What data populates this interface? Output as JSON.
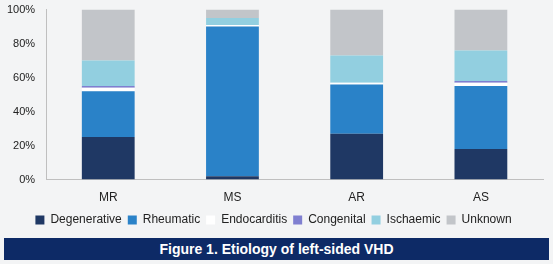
{
  "chart_data": {
    "type": "bar",
    "title": "Figure 1. Etiology of left-sided VHD",
    "categories": [
      "MR",
      "MS",
      "AR",
      "AS"
    ],
    "series": [
      {
        "name": "Degenerative",
        "color": "#1f3864",
        "values": [
          25,
          2,
          27,
          18
        ]
      },
      {
        "name": "Rheumatic",
        "color": "#2a82c8",
        "values": [
          27,
          88,
          29,
          37
        ]
      },
      {
        "name": "Endocarditis",
        "color": "#ffffff",
        "values": [
          2,
          1,
          1,
          2
        ]
      },
      {
        "name": "Congenital",
        "color": "#7f7fd0",
        "values": [
          1,
          0,
          0,
          1
        ]
      },
      {
        "name": "Ischaemic",
        "color": "#92cfe0",
        "values": [
          15,
          4,
          16,
          18
        ]
      },
      {
        "name": "Unknown",
        "color": "#c2c5c9",
        "values": [
          30,
          5,
          27,
          24
        ]
      }
    ],
    "stacked": true,
    "grid": false,
    "legend": "bottom",
    "ylim": [
      0,
      100
    ],
    "yticks": [
      {
        "value": 0,
        "label": "0%"
      },
      {
        "value": 20,
        "label": "20%"
      },
      {
        "value": 40,
        "label": "40%"
      },
      {
        "value": 60,
        "label": "60%"
      },
      {
        "value": 80,
        "label": "80%"
      },
      {
        "value": 100,
        "label": "100%"
      }
    ]
  }
}
